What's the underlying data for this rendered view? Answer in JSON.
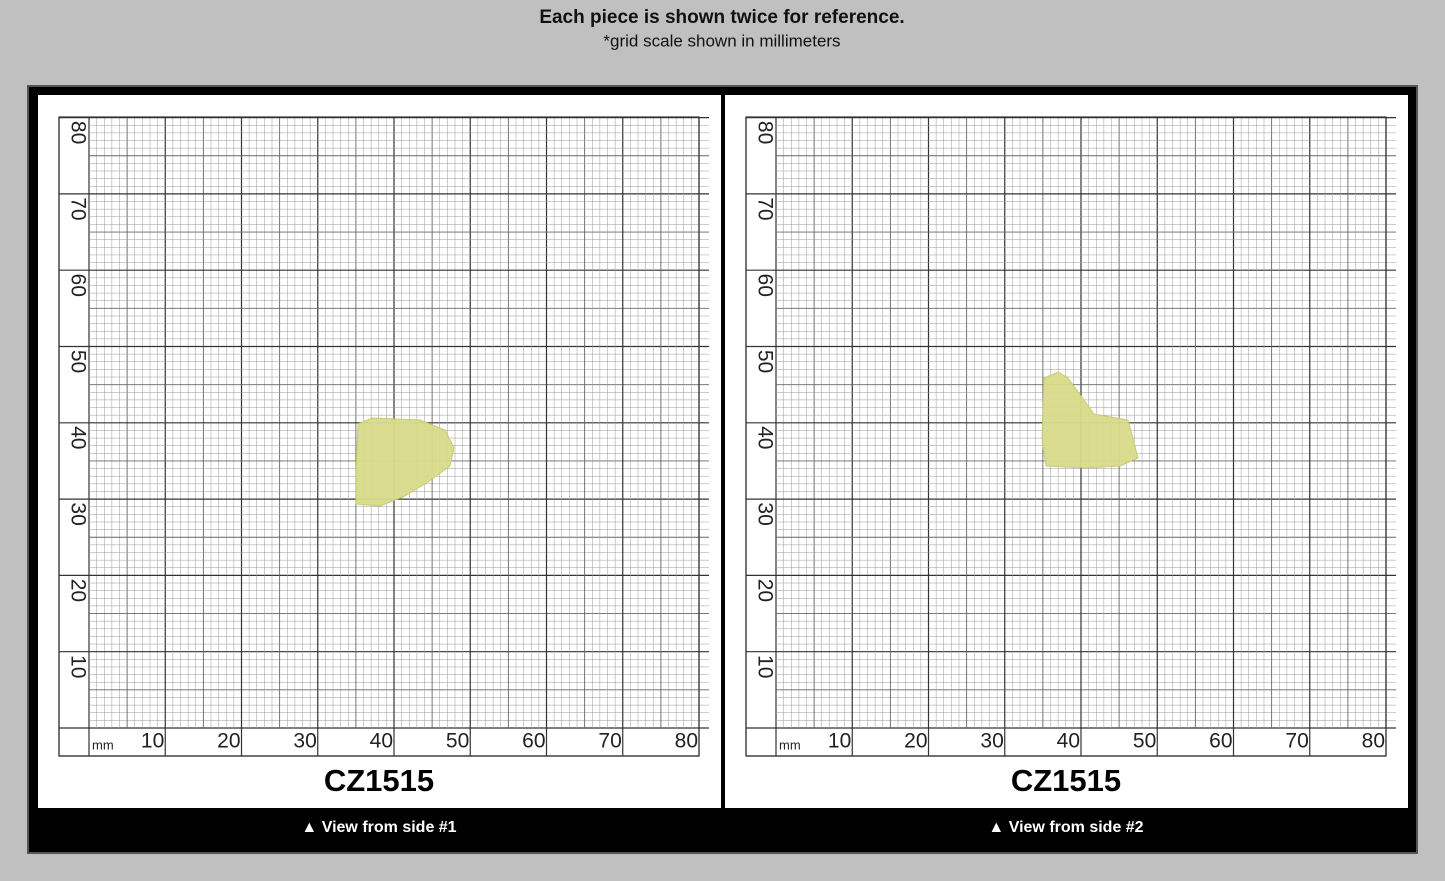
{
  "header": {
    "title": "Each piece is shown twice for reference.",
    "subtitle": "*grid scale shown in millimeters"
  },
  "panels": [
    {
      "y_labels": [
        "80",
        "70",
        "60",
        "50",
        "40",
        "30",
        "20",
        "10"
      ],
      "x_unit": "mm",
      "x_labels": [
        "10",
        "20",
        "30",
        "40",
        "50",
        "60",
        "70",
        "80"
      ],
      "label": "CZ1515",
      "caption": "▲ View from side #1"
    },
    {
      "y_labels": [
        "80",
        "70",
        "60",
        "50",
        "40",
        "30",
        "20",
        "10"
      ],
      "x_unit": "mm",
      "x_labels": [
        "10",
        "20",
        "30",
        "40",
        "50",
        "60",
        "70",
        "80"
      ],
      "label": "CZ1515",
      "caption": "▲ View from side #2"
    }
  ]
}
